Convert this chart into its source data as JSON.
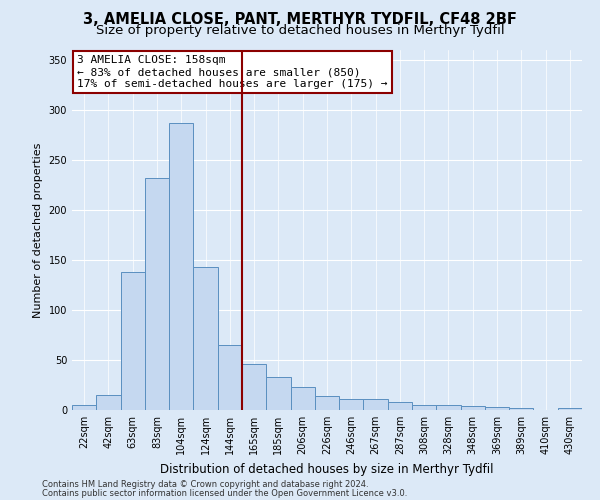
{
  "title": "3, AMELIA CLOSE, PANT, MERTHYR TYDFIL, CF48 2BF",
  "subtitle": "Size of property relative to detached houses in Merthyr Tydfil",
  "xlabel": "Distribution of detached houses by size in Merthyr Tydfil",
  "ylabel": "Number of detached properties",
  "footer1": "Contains HM Land Registry data © Crown copyright and database right 2024.",
  "footer2": "Contains public sector information licensed under the Open Government Licence v3.0.",
  "categories": [
    "22sqm",
    "42sqm",
    "63sqm",
    "83sqm",
    "104sqm",
    "124sqm",
    "144sqm",
    "165sqm",
    "185sqm",
    "206sqm",
    "226sqm",
    "246sqm",
    "267sqm",
    "287sqm",
    "308sqm",
    "328sqm",
    "348sqm",
    "369sqm",
    "389sqm",
    "410sqm",
    "430sqm"
  ],
  "values": [
    5,
    15,
    138,
    232,
    287,
    143,
    65,
    46,
    33,
    23,
    14,
    11,
    11,
    8,
    5,
    5,
    4,
    3,
    2,
    0,
    2
  ],
  "bar_color": "#c5d8f0",
  "bar_edge_color": "#5a8fc0",
  "vline_x_index": 6.5,
  "vline_color": "#8b0000",
  "annotation_line1": "3 AMELIA CLOSE: 158sqm",
  "annotation_line2": "← 83% of detached houses are smaller (850)",
  "annotation_line3": "17% of semi-detached houses are larger (175) →",
  "annotation_box_color": "#ffffff",
  "annotation_box_edge": "#8b0000",
  "ylim": [
    0,
    360
  ],
  "yticks": [
    0,
    50,
    100,
    150,
    200,
    250,
    300,
    350
  ],
  "background_color": "#dce9f7",
  "grid_color": "#ffffff",
  "title_fontsize": 10.5,
  "subtitle_fontsize": 9.5,
  "xlabel_fontsize": 8.5,
  "ylabel_fontsize": 8,
  "tick_fontsize": 7,
  "annot_fontsize": 8,
  "footer_fontsize": 6
}
